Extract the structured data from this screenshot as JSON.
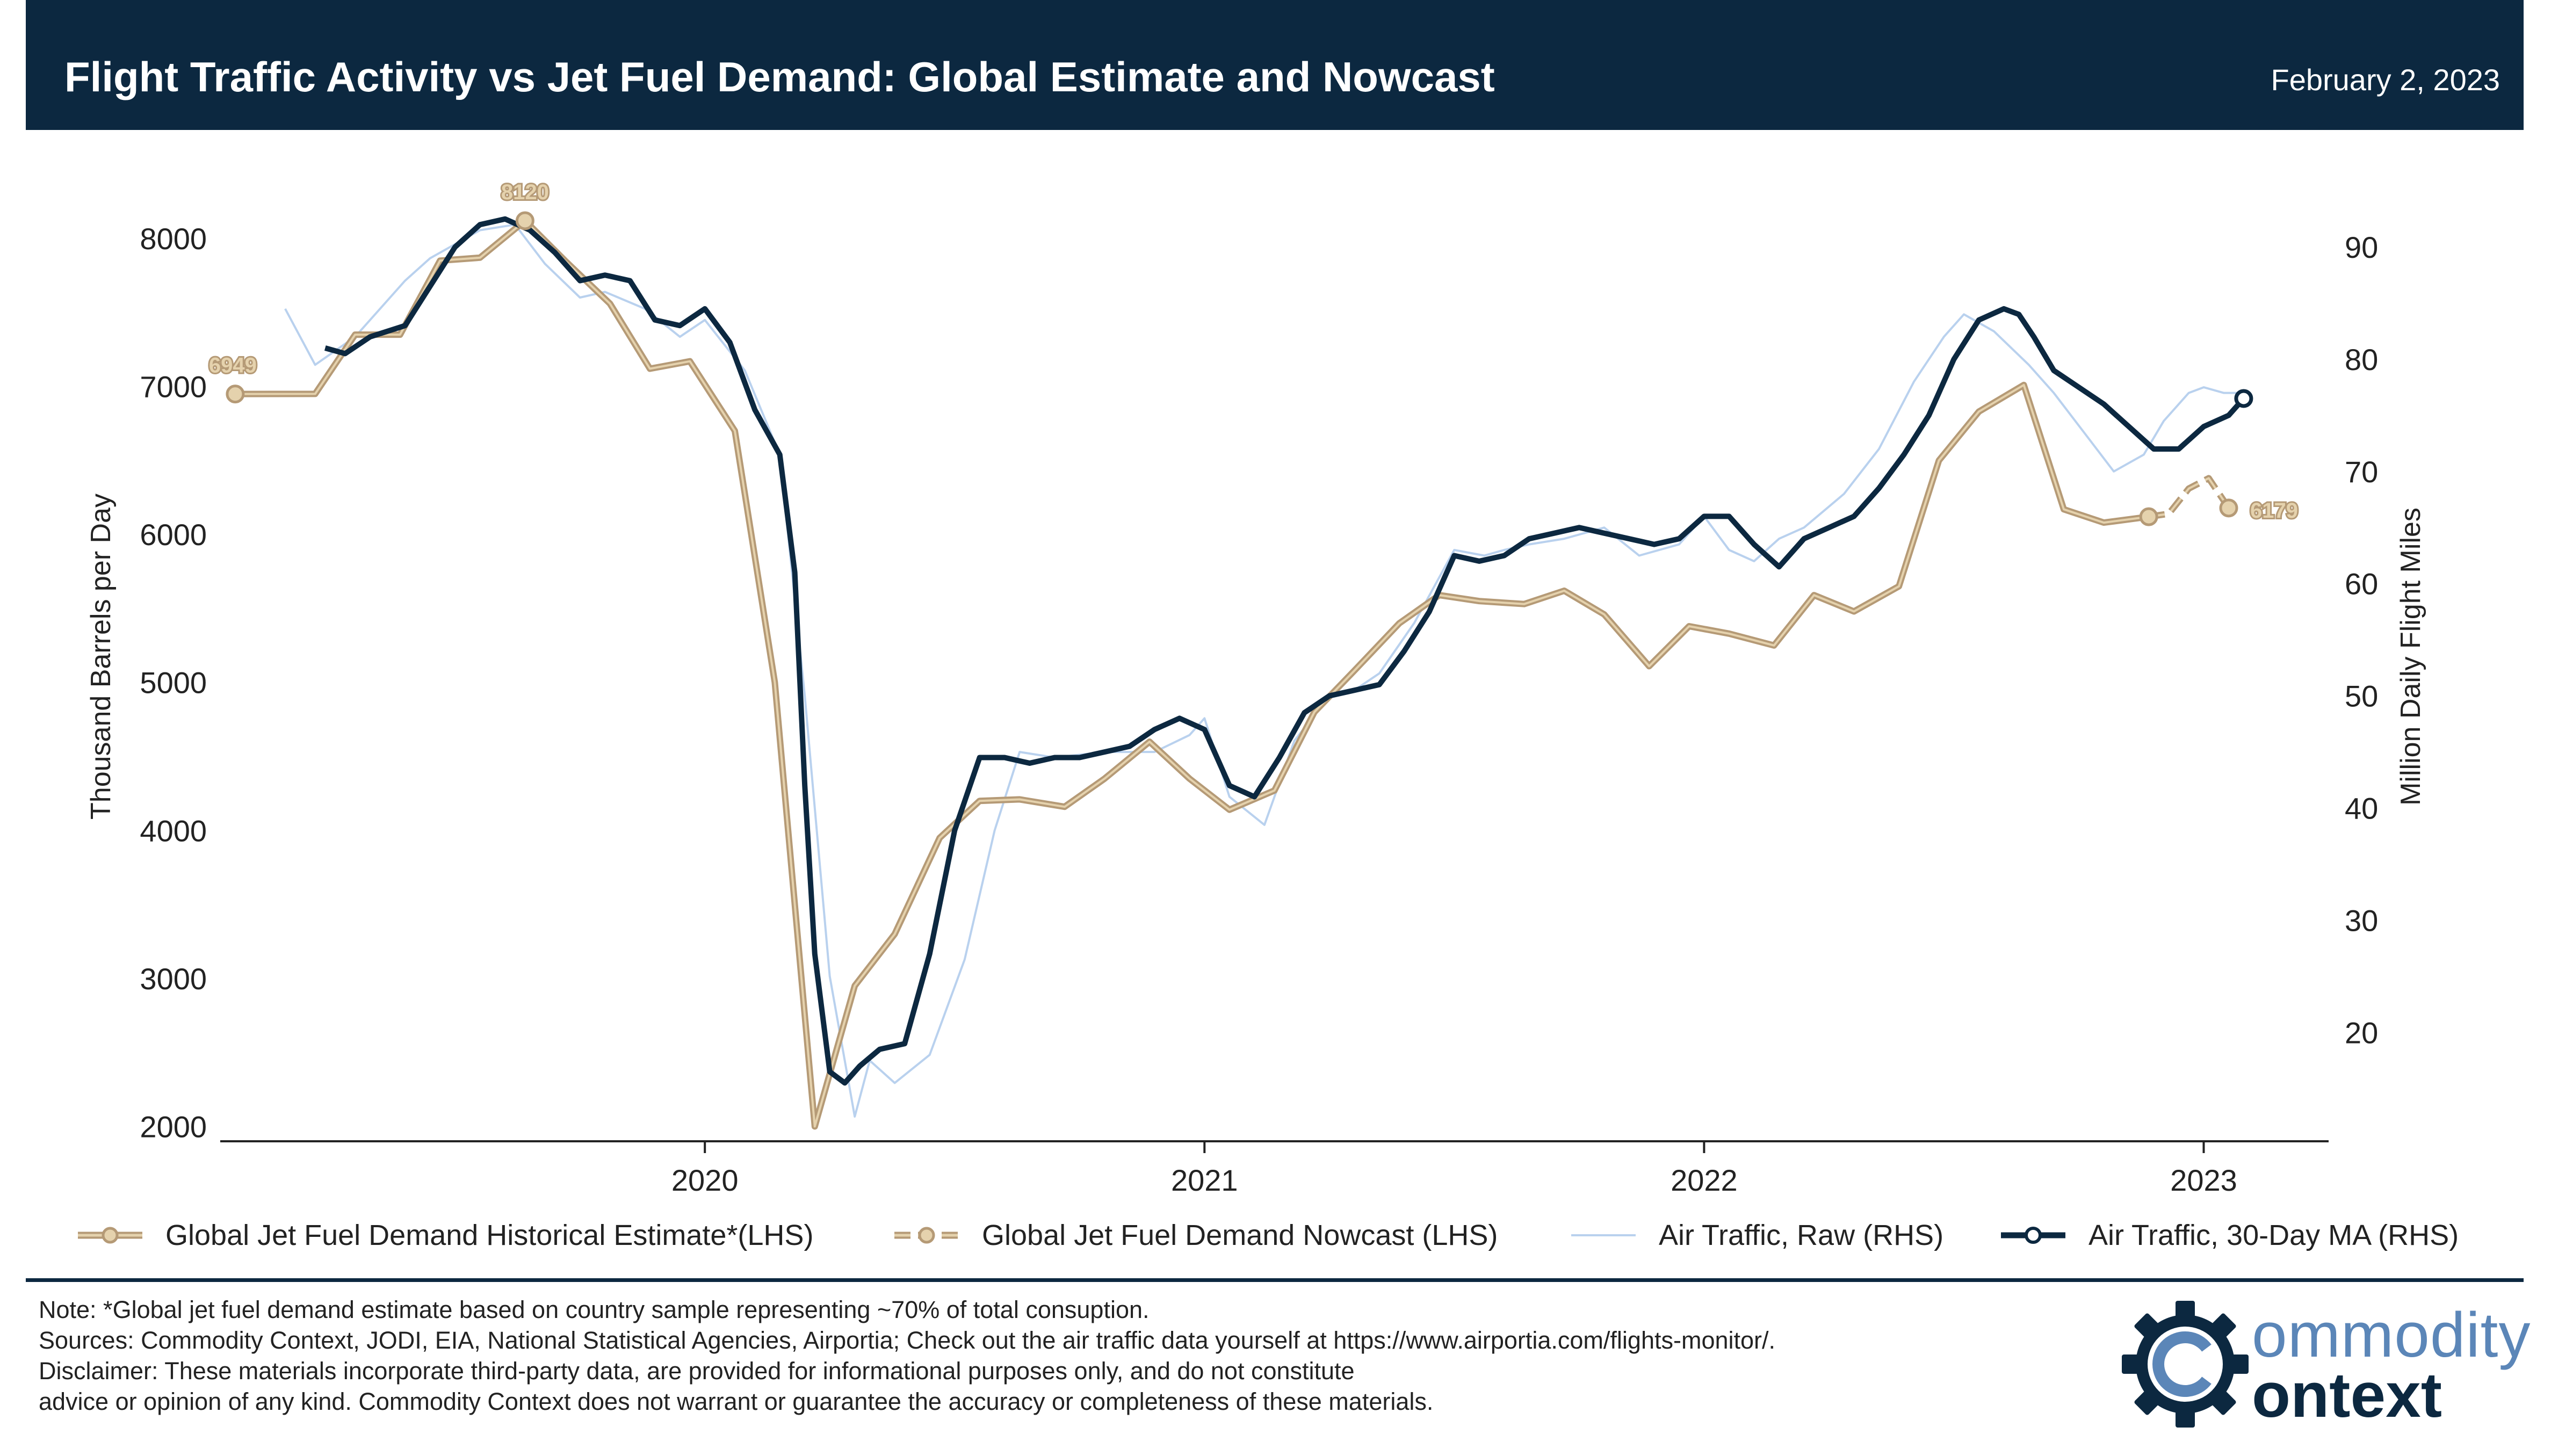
{
  "header": {
    "title": "Flight Traffic Activity vs Jet Fuel Demand: Global Estimate and Nowcast",
    "date": "February 2, 2023"
  },
  "colors": {
    "header_bg": "#0c2840",
    "fuel": "#b59a76",
    "fuel_fill": "#e5d2ad",
    "raw": "#b9d1ee",
    "ma": "#0c2840"
  },
  "chart_data": {
    "type": "line",
    "ylabel": "Thousand Barrels per Day",
    "y2label": "Million Daily Flight Miles",
    "ylim": [
      1900,
      8450
    ],
    "y2lim": [
      10.3,
      96.7
    ],
    "xlim": [
      2019.03,
      2023.25
    ],
    "y_ticks": [
      2000,
      3000,
      4000,
      5000,
      6000,
      7000,
      8000
    ],
    "y2_ticks": [
      20,
      30,
      40,
      50,
      60,
      70,
      80,
      90
    ],
    "x_ticks": [
      "2020",
      "2021",
      "2022",
      "2023"
    ],
    "x_tick_values": [
      2020.0,
      2021.0,
      2022.0,
      2023.0
    ],
    "legend_position": "bottom",
    "grid": false,
    "annotations": [
      {
        "text": "6949",
        "x": 2019.06,
        "y": 6949
      },
      {
        "text": "8120",
        "x": 2019.64,
        "y": 8120
      },
      {
        "text": "6179",
        "x": 2023.05,
        "y": 6179
      }
    ],
    "series": [
      {
        "name": "Global Jet Fuel Demand Historical Estimate*(LHS)",
        "axis": "left",
        "x": [
          2019.06,
          2019.22,
          2019.3,
          2019.39,
          2019.47,
          2019.55,
          2019.64,
          2019.72,
          2019.81,
          2019.89,
          2019.97,
          2020.06,
          2020.14,
          2020.22,
          2020.3,
          2020.38,
          2020.47,
          2020.55,
          2020.63,
          2020.72,
          2020.8,
          2020.89,
          2020.97,
          2021.05,
          2021.14,
          2021.22,
          2021.3,
          2021.39,
          2021.47,
          2021.55,
          2021.64,
          2021.72,
          2021.8,
          2021.89,
          2021.97,
          2022.05,
          2022.14,
          2022.22,
          2022.3,
          2022.39,
          2022.47,
          2022.55,
          2022.64,
          2022.72,
          2022.8,
          2022.89
        ],
        "y": [
          6949,
          6950,
          7350,
          7350,
          7850,
          7870,
          8120,
          7850,
          7560,
          7120,
          7170,
          6700,
          5000,
          2000,
          2950,
          3300,
          3950,
          4200,
          4210,
          4160,
          4350,
          4600,
          4350,
          4140,
          4270,
          4800,
          5080,
          5400,
          5590,
          5550,
          5530,
          5620,
          5460,
          5110,
          5380,
          5330,
          5250,
          5590,
          5480,
          5650,
          6500,
          6830,
          7010,
          6170,
          6080,
          6120
        ]
      },
      {
        "name": "Global Jet Fuel Demand Nowcast (LHS)",
        "axis": "left",
        "x": [
          2022.89,
          2022.93,
          2022.97,
          2023.01,
          2023.05
        ],
        "y": [
          6120,
          6140,
          6310,
          6380,
          6179
        ]
      },
      {
        "name": "Air Traffic, Raw (RHS)",
        "axis": "right",
        "x": [
          2019.16,
          2019.22,
          2019.3,
          2019.4,
          2019.45,
          2019.55,
          2019.62,
          2019.68,
          2019.75,
          2019.8,
          2019.88,
          2019.95,
          2020.0,
          2020.08,
          2020.15,
          2020.2,
          2020.25,
          2020.3,
          2020.33,
          2020.38,
          2020.45,
          2020.52,
          2020.58,
          2020.63,
          2020.7,
          2020.8,
          2020.9,
          2020.97,
          2021.0,
          2021.05,
          2021.12,
          2021.18,
          2021.25,
          2021.3,
          2021.35,
          2021.42,
          2021.5,
          2021.56,
          2021.6,
          2021.65,
          2021.72,
          2021.8,
          2021.87,
          2021.95,
          2022.0,
          2022.05,
          2022.1,
          2022.15,
          2022.2,
          2022.28,
          2022.35,
          2022.42,
          2022.48,
          2022.52,
          2022.58,
          2022.65,
          2022.7,
          2022.76,
          2022.82,
          2022.88,
          2022.92,
          2022.97,
          2023.0,
          2023.04,
          2023.07
        ],
        "y": [
          84.5,
          79.5,
          82.0,
          87.0,
          89.0,
          91.5,
          92.0,
          88.5,
          85.5,
          86.0,
          84.5,
          82.0,
          83.5,
          79.0,
          71.5,
          50.0,
          25.0,
          12.5,
          17.5,
          15.5,
          18.0,
          26.5,
          38.0,
          45.0,
          44.5,
          45.0,
          45.0,
          46.5,
          48.0,
          41.0,
          38.5,
          46.0,
          50.0,
          50.5,
          52.0,
          56.5,
          63.0,
          62.5,
          63.0,
          63.5,
          64.0,
          65.0,
          62.5,
          63.5,
          66.0,
          63.0,
          62.0,
          64.0,
          65.0,
          68.0,
          72.0,
          78.0,
          82.0,
          84.0,
          82.5,
          79.5,
          77.0,
          73.5,
          70.0,
          71.5,
          74.5,
          77.0,
          77.5,
          77.0,
          77.0
        ]
      },
      {
        "name": "Air Traffic, 30-Day MA (RHS)",
        "axis": "right",
        "x": [
          2019.24,
          2019.28,
          2019.33,
          2019.4,
          2019.45,
          2019.5,
          2019.55,
          2019.6,
          2019.65,
          2019.7,
          2019.75,
          2019.8,
          2019.85,
          2019.9,
          2019.95,
          2020.0,
          2020.05,
          2020.1,
          2020.15,
          2020.18,
          2020.2,
          2020.22,
          2020.25,
          2020.28,
          2020.31,
          2020.35,
          2020.4,
          2020.45,
          2020.5,
          2020.55,
          2020.6,
          2020.65,
          2020.7,
          2020.75,
          2020.8,
          2020.85,
          2020.9,
          2020.95,
          2021.0,
          2021.05,
          2021.1,
          2021.15,
          2021.2,
          2021.25,
          2021.3,
          2021.35,
          2021.4,
          2021.45,
          2021.5,
          2021.55,
          2021.6,
          2021.65,
          2021.7,
          2021.75,
          2021.8,
          2021.85,
          2021.9,
          2021.95,
          2022.0,
          2022.05,
          2022.1,
          2022.15,
          2022.2,
          2022.25,
          2022.3,
          2022.35,
          2022.4,
          2022.45,
          2022.5,
          2022.55,
          2022.6,
          2022.63,
          2022.66,
          2022.7,
          2022.75,
          2022.8,
          2022.85,
          2022.9,
          2022.95,
          2023.0,
          2023.05,
          2023.08
        ],
        "y": [
          81.0,
          80.5,
          82.0,
          83.0,
          86.5,
          90.0,
          92.0,
          92.5,
          91.5,
          89.5,
          87.0,
          87.5,
          87.0,
          83.5,
          83.0,
          84.5,
          81.5,
          75.5,
          71.5,
          61.0,
          42.0,
          27.0,
          16.5,
          15.5,
          17.0,
          18.5,
          19.0,
          27.0,
          38.0,
          44.5,
          44.5,
          44.0,
          44.5,
          44.5,
          45.0,
          45.5,
          47.0,
          48.0,
          47.0,
          42.0,
          41.0,
          44.5,
          48.5,
          50.0,
          50.5,
          51.0,
          54.0,
          57.5,
          62.5,
          62.0,
          62.5,
          64.0,
          64.5,
          65.0,
          64.5,
          64.0,
          63.5,
          64.0,
          66.0,
          66.0,
          63.5,
          61.5,
          64.0,
          65.0,
          66.0,
          68.5,
          71.5,
          75.0,
          80.0,
          83.5,
          84.5,
          84.0,
          82.0,
          79.0,
          77.5,
          76.0,
          74.0,
          72.0,
          72.0,
          74.0,
          75.0,
          76.5
        ]
      }
    ]
  },
  "legend": {
    "items": [
      "Global Jet Fuel Demand Historical Estimate*(LHS)",
      "Global Jet Fuel Demand Nowcast (LHS)",
      "Air Traffic, Raw (RHS)",
      "Air Traffic, 30-Day MA (RHS)"
    ]
  },
  "notes": {
    "note": "Note: *Global jet fuel demand estimate based on country sample representing ~70% of total consuption.",
    "sources": "Sources: Commodity Context, JODI, EIA, National Statistical Agencies, Airportia; Check out the air traffic data yourself at https://www.airportia.com/flights-monitor/.",
    "disclaimer_1": "Disclaimer: These materials incorporate third-party data, are provided for informational purposes only, and do not constitute",
    "disclaimer_2": "advice or opinion of any kind. Commodity Context does not warrant or guarantee the accuracy or completeness of these materials."
  },
  "logo": {
    "line1": "ommodity",
    "line2": "ontext",
    "icon": "gear-c-icon"
  }
}
